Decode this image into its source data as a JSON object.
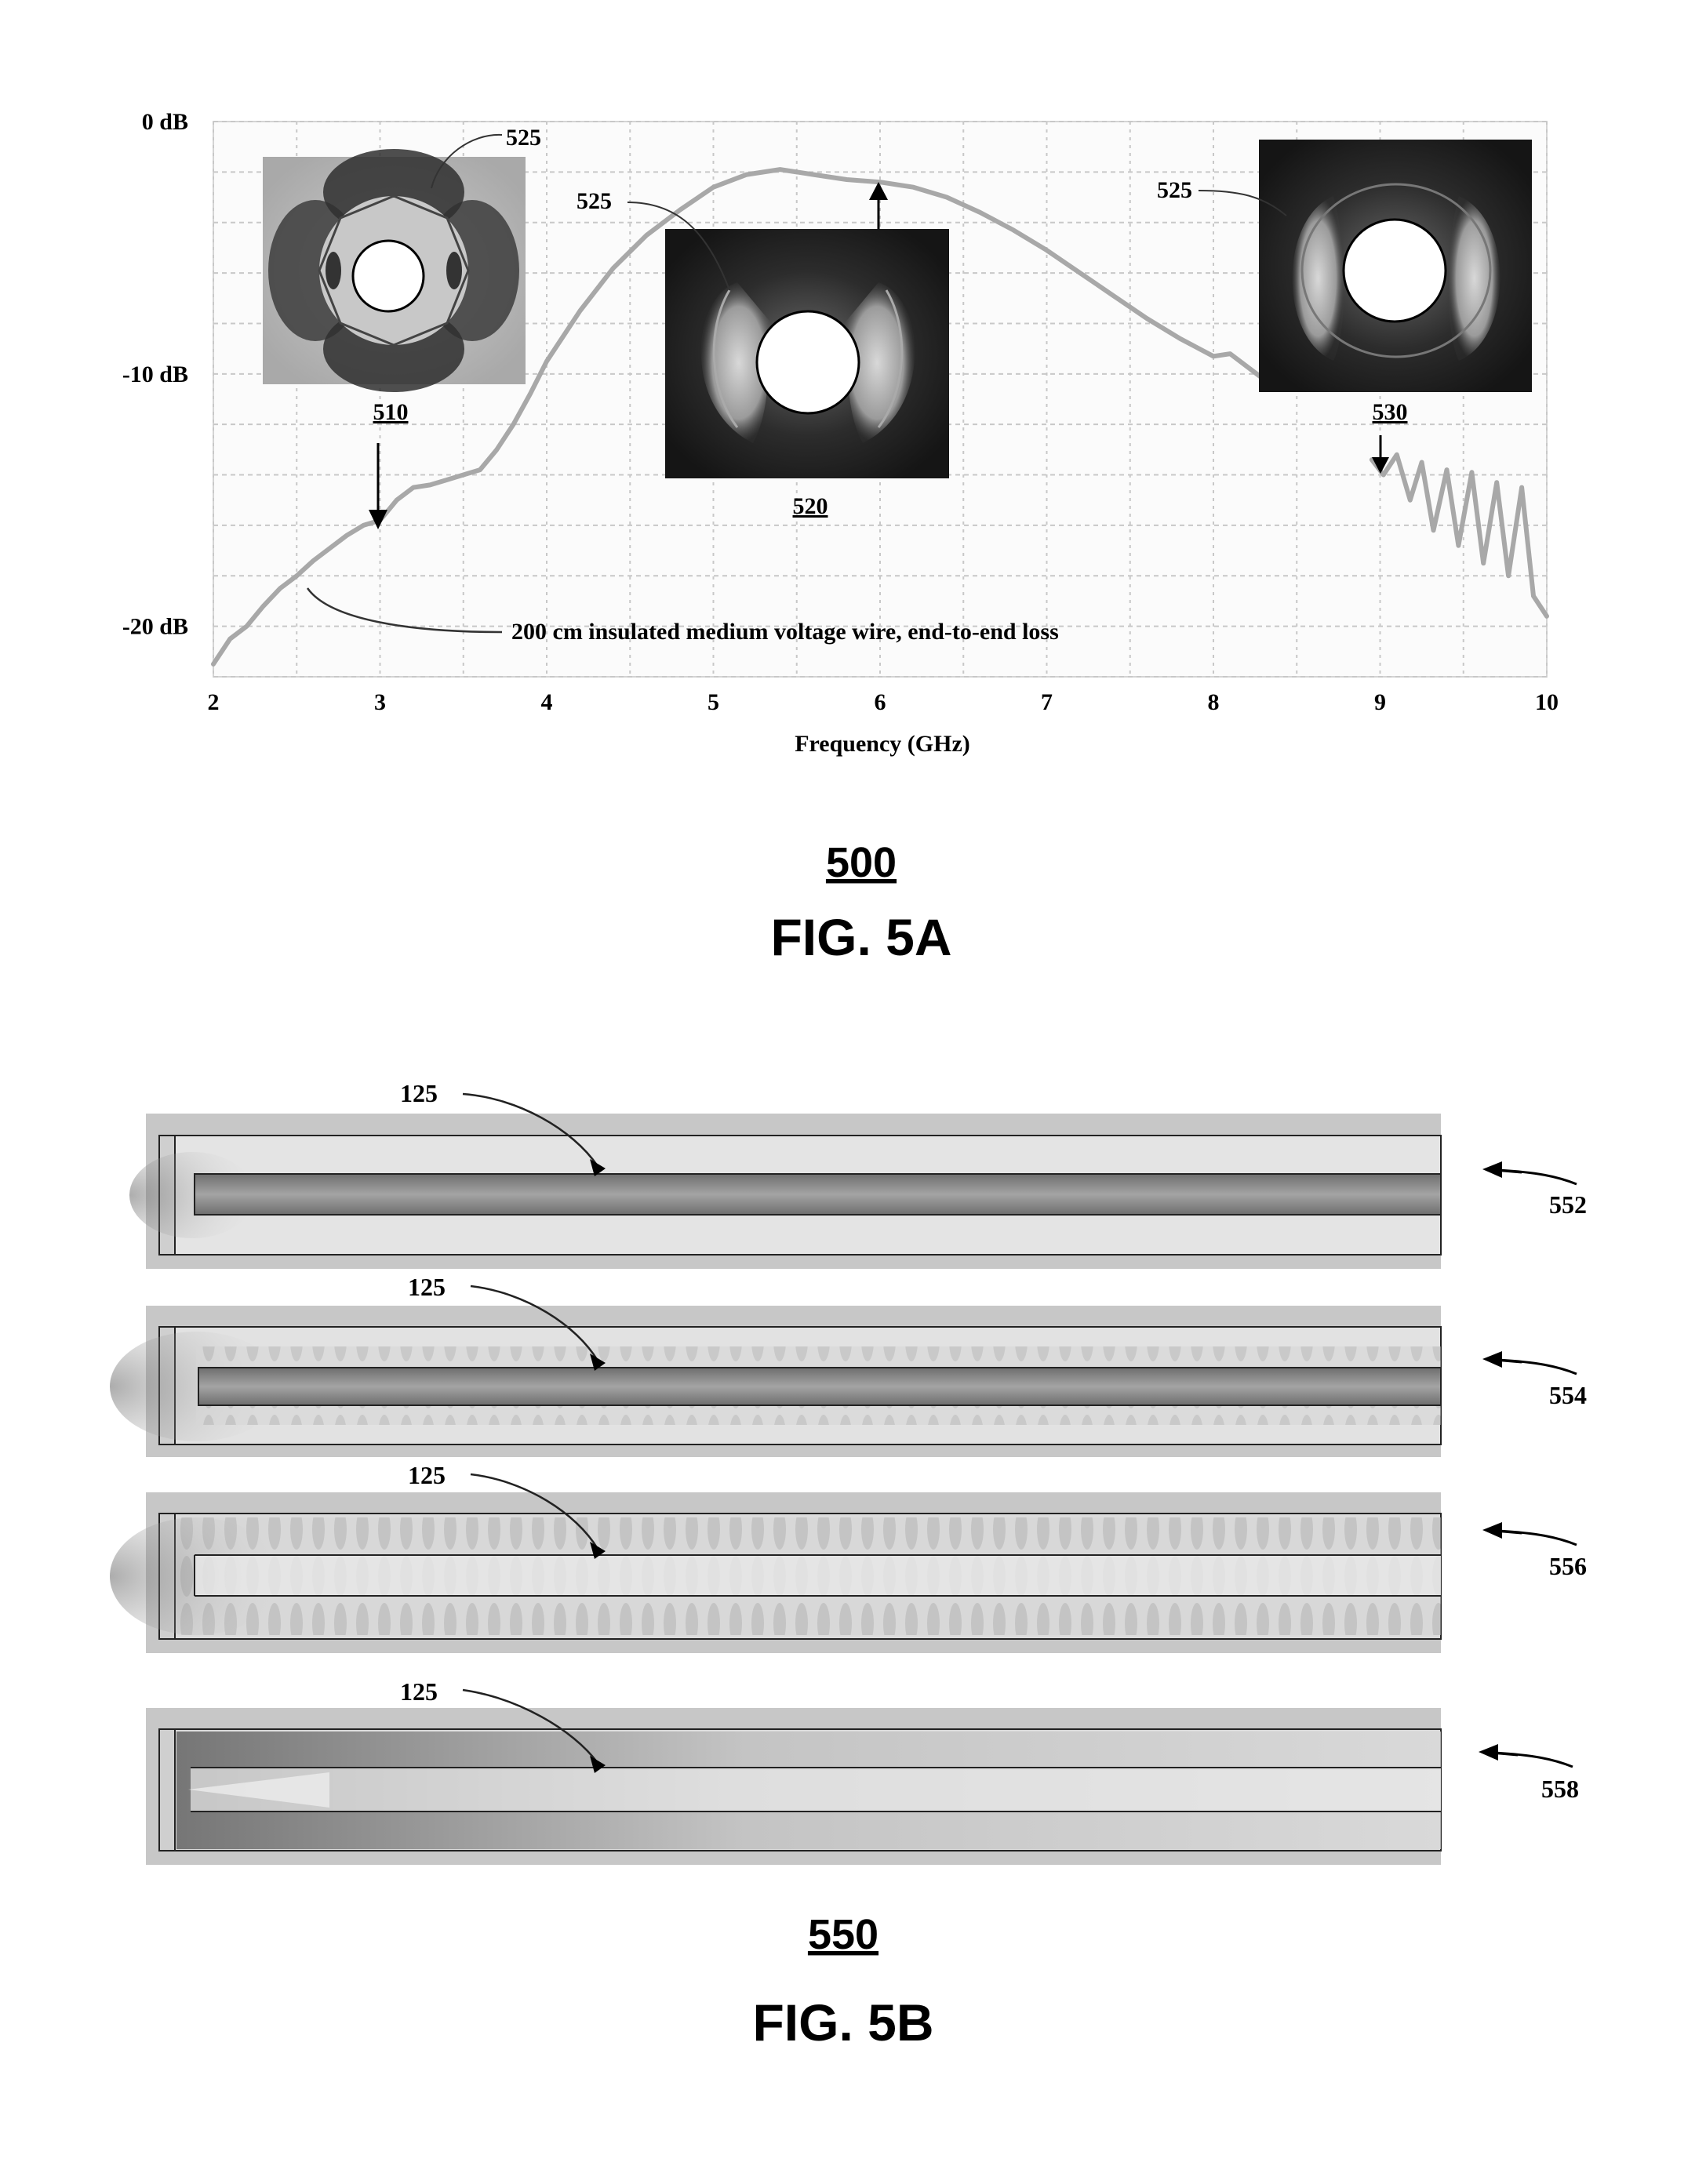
{
  "chart_data": {
    "type": "line",
    "title": "",
    "xlabel": "Frequency (GHz)",
    "ylabel": "",
    "xlim": [
      2,
      10
    ],
    "ylim": [
      -22,
      0
    ],
    "x_ticks": [
      "2",
      "3",
      "4",
      "5",
      "6",
      "7",
      "8",
      "9",
      "10"
    ],
    "y_ticks": [
      {
        "value": 0,
        "label": "0 dB"
      },
      {
        "value": -10,
        "label": "-10 dB"
      },
      {
        "value": -20,
        "label": "-20 dB"
      }
    ],
    "grid": true,
    "series": [
      {
        "name": "200 cm insulated medium voltage wire, end-to-end loss",
        "x": [
          2.0,
          2.1,
          2.2,
          2.3,
          2.4,
          2.5,
          2.6,
          2.7,
          2.8,
          2.9,
          3.0,
          3.1,
          3.2,
          3.3,
          3.4,
          3.5,
          3.6,
          3.7,
          3.8,
          3.9,
          4.0,
          4.2,
          4.4,
          4.6,
          4.8,
          5.0,
          5.2,
          5.4,
          5.6,
          5.8,
          6.0,
          6.2,
          6.4,
          6.6,
          6.8,
          7.0,
          7.2,
          7.4,
          7.6,
          7.8,
          8.0,
          8.1,
          8.2,
          8.3
        ],
        "y": [
          -21.5,
          -20.5,
          -20.0,
          -19.2,
          -18.5,
          -18.0,
          -17.4,
          -16.9,
          -16.4,
          -16.0,
          -15.8,
          -15.0,
          -14.5,
          -14.4,
          -14.2,
          -14.0,
          -13.8,
          -13.0,
          -12.0,
          -10.8,
          -9.5,
          -7.5,
          -5.8,
          -4.5,
          -3.5,
          -2.6,
          -2.1,
          -1.9,
          -2.1,
          -2.3,
          -2.4,
          -2.6,
          -3.0,
          -3.6,
          -4.3,
          -5.1,
          -6.0,
          -6.9,
          -7.8,
          -8.6,
          -9.3,
          -9.2,
          -9.7,
          -10.2
        ]
      },
      {
        "name": "",
        "x": [
          8.95,
          9.02,
          9.1,
          9.18,
          9.25,
          9.32,
          9.4,
          9.47,
          9.55,
          9.62,
          9.7,
          9.77,
          9.85,
          9.92,
          10.0
        ],
        "y": [
          -13.4,
          -14.0,
          -13.2,
          -15.0,
          -13.5,
          -16.2,
          -13.8,
          -16.8,
          -13.9,
          -17.5,
          -14.3,
          -18.0,
          -14.5,
          -18.8,
          -19.6
        ]
      }
    ],
    "annotations": [
      {
        "text": "200 cm insulated medium voltage wire, end-to-end loss",
        "x": 2.5,
        "y": -18.5
      },
      {
        "ref": "510",
        "x": 3.0,
        "y": -15.8
      },
      {
        "ref": "520",
        "x": 6.0,
        "y": -2.4
      },
      {
        "ref": "530",
        "x": 9.0,
        "y": -13.4
      }
    ]
  },
  "fig5a": {
    "number": "500",
    "caption": "FIG. 5A",
    "x_axis_label": "Frequency (GHz)",
    "curve_label": "200 cm insulated medium voltage wire, end-to-end loss",
    "insets": [
      {
        "ref": "510",
        "label": "525",
        "style": "light"
      },
      {
        "ref": "520",
        "label": "525",
        "style": "dark"
      },
      {
        "ref": "530",
        "label": "525",
        "style": "dark"
      }
    ]
  },
  "fig5b": {
    "number": "550",
    "caption": "FIG. 5B",
    "panels": [
      {
        "ref": "552",
        "label": "125"
      },
      {
        "ref": "554",
        "label": "125"
      },
      {
        "ref": "556",
        "label": "125"
      },
      {
        "ref": "558",
        "label": "125"
      }
    ]
  },
  "colors": {
    "curve": "#a8a8a8",
    "grid": "#c8c8c8",
    "panel_background": "#cfcfcf",
    "wire": "#8a8a8a"
  }
}
